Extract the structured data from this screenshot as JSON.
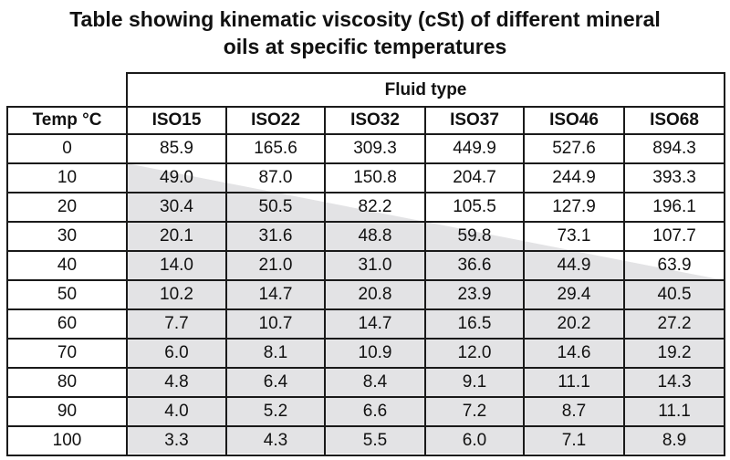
{
  "title": {
    "line1": "Table showing kinematic viscosity (cSt) of different mineral",
    "line2": "oils at specific temperatures"
  },
  "header": {
    "group": "Fluid type",
    "temp_label": "Temp °C",
    "fluids": [
      "ISO15",
      "ISO22",
      "ISO32",
      "ISO37",
      "ISO46",
      "ISO68"
    ]
  },
  "rows": [
    {
      "temp": "0",
      "values": [
        "85.9",
        "165.6",
        "309.3",
        "449.9",
        "527.6",
        "894.3"
      ]
    },
    {
      "temp": "10",
      "values": [
        "49.0",
        "87.0",
        "150.8",
        "204.7",
        "244.9",
        "393.3"
      ]
    },
    {
      "temp": "20",
      "values": [
        "30.4",
        "50.5",
        "82.2",
        "105.5",
        "127.9",
        "196.1"
      ]
    },
    {
      "temp": "30",
      "values": [
        "20.1",
        "31.6",
        "48.8",
        "59.8",
        "73.1",
        "107.7"
      ]
    },
    {
      "temp": "40",
      "values": [
        "14.0",
        "21.0",
        "31.0",
        "36.6",
        "44.9",
        "63.9"
      ]
    },
    {
      "temp": "50",
      "values": [
        "10.2",
        "14.7",
        "20.8",
        "23.9",
        "29.4",
        "40.5"
      ]
    },
    {
      "temp": "60",
      "values": [
        "7.7",
        "10.7",
        "14.7",
        "16.5",
        "20.2",
        "27.2"
      ]
    },
    {
      "temp": "70",
      "values": [
        "6.0",
        "8.1",
        "10.9",
        "12.0",
        "14.6",
        "19.2"
      ]
    },
    {
      "temp": "80",
      "values": [
        "4.8",
        "6.4",
        "8.4",
        "9.1",
        "11.1",
        "14.3"
      ]
    },
    {
      "temp": "90",
      "values": [
        "4.0",
        "5.2",
        "6.6",
        "7.2",
        "8.7",
        "11.1"
      ]
    },
    {
      "temp": "100",
      "values": [
        "3.3",
        "4.3",
        "5.5",
        "6.0",
        "7.1",
        "8.9"
      ]
    }
  ],
  "colors": {
    "shade": "#e3e3e5",
    "border": "#1a1a1a",
    "text": "#111111"
  }
}
